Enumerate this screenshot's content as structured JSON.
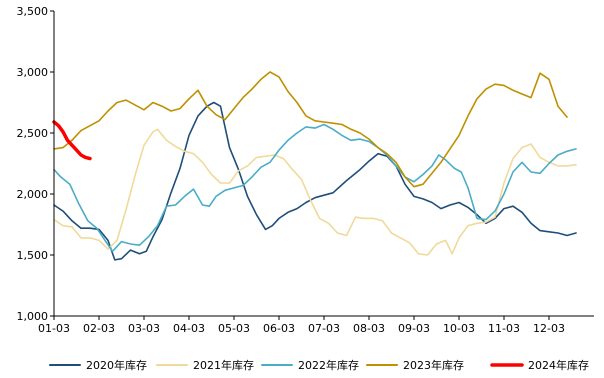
{
  "chart_data": {
    "type": "line",
    "title": "",
    "xlabel": "",
    "ylabel": "",
    "ylim": [
      1000,
      3500
    ],
    "yticks": [
      1000,
      1500,
      2000,
      2500,
      3000,
      3500
    ],
    "ytick_labels": [
      "1,000",
      "1,500",
      "2,000",
      "2,500",
      "3,000",
      "3,500"
    ],
    "xlim": [
      1,
      13
    ],
    "xticks": [
      1,
      2,
      3,
      4,
      5,
      6,
      7,
      8,
      9,
      10,
      11,
      12
    ],
    "xtick_labels": [
      "01-03",
      "02-03",
      "03-03",
      "04-03",
      "05-03",
      "06-03",
      "07-03",
      "08-03",
      "09-03",
      "10-03",
      "11-03",
      "12-03"
    ],
    "grid": false,
    "legend_position": "bottom",
    "series": [
      {
        "name": "2020年库存",
        "color": "#1f4e79",
        "width": 1.6,
        "points": [
          [
            1,
            1910
          ],
          [
            1.2,
            1860
          ],
          [
            1.4,
            1780
          ],
          [
            1.6,
            1720
          ],
          [
            1.8,
            1720
          ],
          [
            2,
            1710
          ],
          [
            2.2,
            1620
          ],
          [
            2.35,
            1460
          ],
          [
            2.5,
            1470
          ],
          [
            2.7,
            1540
          ],
          [
            2.9,
            1510
          ],
          [
            3.05,
            1530
          ],
          [
            3.2,
            1650
          ],
          [
            3.4,
            1790
          ],
          [
            3.6,
            2010
          ],
          [
            3.8,
            2210
          ],
          [
            4,
            2480
          ],
          [
            4.2,
            2640
          ],
          [
            4.4,
            2720
          ],
          [
            4.55,
            2750
          ],
          [
            4.7,
            2720
          ],
          [
            4.8,
            2550
          ],
          [
            4.9,
            2380
          ],
          [
            5.1,
            2200
          ],
          [
            5.3,
            1980
          ],
          [
            5.5,
            1830
          ],
          [
            5.7,
            1710
          ],
          [
            5.85,
            1740
          ],
          [
            6,
            1800
          ],
          [
            6.2,
            1850
          ],
          [
            6.4,
            1880
          ],
          [
            6.6,
            1930
          ],
          [
            6.8,
            1970
          ],
          [
            7,
            1990
          ],
          [
            7.2,
            2010
          ],
          [
            7.5,
            2110
          ],
          [
            7.8,
            2200
          ],
          [
            8,
            2270
          ],
          [
            8.2,
            2330
          ],
          [
            8.4,
            2310
          ],
          [
            8.6,
            2230
          ],
          [
            8.8,
            2080
          ],
          [
            9,
            1980
          ],
          [
            9.2,
            1960
          ],
          [
            9.4,
            1930
          ],
          [
            9.6,
            1880
          ],
          [
            9.8,
            1910
          ],
          [
            10,
            1930
          ],
          [
            10.2,
            1890
          ],
          [
            10.4,
            1830
          ],
          [
            10.6,
            1760
          ],
          [
            10.8,
            1800
          ],
          [
            11,
            1880
          ],
          [
            11.2,
            1900
          ],
          [
            11.4,
            1850
          ],
          [
            11.6,
            1760
          ],
          [
            11.8,
            1700
          ],
          [
            12,
            1690
          ],
          [
            12.2,
            1680
          ],
          [
            12.4,
            1660
          ],
          [
            12.6,
            1680
          ]
        ]
      },
      {
        "name": "2021年库存",
        "color": "#f0d99a",
        "width": 1.6,
        "points": [
          [
            1,
            1790
          ],
          [
            1.2,
            1740
          ],
          [
            1.4,
            1730
          ],
          [
            1.6,
            1640
          ],
          [
            1.8,
            1640
          ],
          [
            2,
            1620
          ],
          [
            2.2,
            1550
          ],
          [
            2.4,
            1620
          ],
          [
            2.6,
            1870
          ],
          [
            2.8,
            2150
          ],
          [
            3,
            2400
          ],
          [
            3.2,
            2510
          ],
          [
            3.3,
            2530
          ],
          [
            3.5,
            2440
          ],
          [
            3.7,
            2390
          ],
          [
            3.9,
            2350
          ],
          [
            4.1,
            2330
          ],
          [
            4.3,
            2260
          ],
          [
            4.5,
            2160
          ],
          [
            4.7,
            2090
          ],
          [
            4.9,
            2090
          ],
          [
            5.1,
            2190
          ],
          [
            5.3,
            2230
          ],
          [
            5.5,
            2300
          ],
          [
            5.7,
            2310
          ],
          [
            5.9,
            2320
          ],
          [
            6.1,
            2290
          ],
          [
            6.3,
            2200
          ],
          [
            6.5,
            2120
          ],
          [
            6.7,
            1950
          ],
          [
            6.9,
            1800
          ],
          [
            7.1,
            1760
          ],
          [
            7.3,
            1680
          ],
          [
            7.5,
            1660
          ],
          [
            7.7,
            1810
          ],
          [
            7.9,
            1800
          ],
          [
            8.1,
            1800
          ],
          [
            8.3,
            1780
          ],
          [
            8.5,
            1680
          ],
          [
            8.7,
            1640
          ],
          [
            8.9,
            1600
          ],
          [
            9.1,
            1510
          ],
          [
            9.3,
            1500
          ],
          [
            9.5,
            1590
          ],
          [
            9.7,
            1620
          ],
          [
            9.85,
            1510
          ],
          [
            10,
            1640
          ],
          [
            10.2,
            1740
          ],
          [
            10.4,
            1760
          ],
          [
            10.6,
            1770
          ],
          [
            10.8,
            1810
          ],
          [
            11,
            2090
          ],
          [
            11.2,
            2290
          ],
          [
            11.4,
            2380
          ],
          [
            11.6,
            2410
          ],
          [
            11.8,
            2300
          ],
          [
            12,
            2260
          ],
          [
            12.2,
            2230
          ],
          [
            12.4,
            2230
          ],
          [
            12.6,
            2240
          ]
        ]
      },
      {
        "name": "2022年库存",
        "color": "#4bacc6",
        "width": 1.6,
        "points": [
          [
            1,
            2200
          ],
          [
            1.15,
            2140
          ],
          [
            1.35,
            2080
          ],
          [
            1.55,
            1920
          ],
          [
            1.75,
            1780
          ],
          [
            1.95,
            1720
          ],
          [
            2.15,
            1610
          ],
          [
            2.3,
            1530
          ],
          [
            2.5,
            1610
          ],
          [
            2.7,
            1590
          ],
          [
            2.9,
            1580
          ],
          [
            3.1,
            1650
          ],
          [
            3.3,
            1740
          ],
          [
            3.5,
            1900
          ],
          [
            3.7,
            1910
          ],
          [
            3.9,
            1980
          ],
          [
            4.1,
            2040
          ],
          [
            4.3,
            1910
          ],
          [
            4.45,
            1900
          ],
          [
            4.6,
            1980
          ],
          [
            4.8,
            2030
          ],
          [
            5,
            2050
          ],
          [
            5.2,
            2070
          ],
          [
            5.4,
            2140
          ],
          [
            5.6,
            2220
          ],
          [
            5.8,
            2260
          ],
          [
            6,
            2360
          ],
          [
            6.2,
            2440
          ],
          [
            6.4,
            2500
          ],
          [
            6.6,
            2550
          ],
          [
            6.8,
            2540
          ],
          [
            7,
            2570
          ],
          [
            7.2,
            2530
          ],
          [
            7.4,
            2480
          ],
          [
            7.6,
            2440
          ],
          [
            7.8,
            2450
          ],
          [
            8,
            2430
          ],
          [
            8.2,
            2380
          ],
          [
            8.4,
            2320
          ],
          [
            8.6,
            2230
          ],
          [
            8.8,
            2140
          ],
          [
            9,
            2100
          ],
          [
            9.2,
            2160
          ],
          [
            9.4,
            2230
          ],
          [
            9.55,
            2320
          ],
          [
            9.7,
            2280
          ],
          [
            9.9,
            2210
          ],
          [
            10.05,
            2180
          ],
          [
            10.2,
            2050
          ],
          [
            10.4,
            1800
          ],
          [
            10.6,
            1790
          ],
          [
            10.8,
            1860
          ],
          [
            11,
            2000
          ],
          [
            11.2,
            2180
          ],
          [
            11.4,
            2260
          ],
          [
            11.6,
            2180
          ],
          [
            11.8,
            2170
          ],
          [
            12,
            2250
          ],
          [
            12.2,
            2320
          ],
          [
            12.4,
            2350
          ],
          [
            12.6,
            2370
          ]
        ]
      },
      {
        "name": "2023年库存",
        "color": "#bf9000",
        "width": 1.6,
        "points": [
          [
            1,
            2370
          ],
          [
            1.2,
            2380
          ],
          [
            1.4,
            2440
          ],
          [
            1.6,
            2520
          ],
          [
            1.8,
            2560
          ],
          [
            2,
            2600
          ],
          [
            2.2,
            2680
          ],
          [
            2.4,
            2750
          ],
          [
            2.6,
            2770
          ],
          [
            2.8,
            2730
          ],
          [
            3,
            2690
          ],
          [
            3.2,
            2750
          ],
          [
            3.4,
            2720
          ],
          [
            3.6,
            2680
          ],
          [
            3.8,
            2700
          ],
          [
            4,
            2780
          ],
          [
            4.2,
            2850
          ],
          [
            4.4,
            2720
          ],
          [
            4.6,
            2650
          ],
          [
            4.8,
            2610
          ],
          [
            5,
            2700
          ],
          [
            5.2,
            2790
          ],
          [
            5.4,
            2860
          ],
          [
            5.6,
            2940
          ],
          [
            5.8,
            3000
          ],
          [
            6,
            2960
          ],
          [
            6.2,
            2840
          ],
          [
            6.4,
            2750
          ],
          [
            6.6,
            2640
          ],
          [
            6.8,
            2600
          ],
          [
            7,
            2590
          ],
          [
            7.2,
            2580
          ],
          [
            7.4,
            2570
          ],
          [
            7.6,
            2530
          ],
          [
            7.8,
            2500
          ],
          [
            8,
            2450
          ],
          [
            8.2,
            2380
          ],
          [
            8.4,
            2330
          ],
          [
            8.6,
            2260
          ],
          [
            8.8,
            2140
          ],
          [
            9,
            2060
          ],
          [
            9.2,
            2080
          ],
          [
            9.4,
            2170
          ],
          [
            9.6,
            2260
          ],
          [
            9.8,
            2370
          ],
          [
            10,
            2480
          ],
          [
            10.2,
            2640
          ],
          [
            10.4,
            2780
          ],
          [
            10.6,
            2860
          ],
          [
            10.8,
            2900
          ],
          [
            11,
            2890
          ],
          [
            11.2,
            2850
          ],
          [
            11.4,
            2820
          ],
          [
            11.6,
            2790
          ],
          [
            11.8,
            2990
          ],
          [
            12,
            2940
          ],
          [
            12.2,
            2720
          ],
          [
            12.4,
            2630
          ]
        ]
      },
      {
        "name": "2024年库存",
        "color": "#ff0000",
        "width": 3.5,
        "points": [
          [
            1,
            2590
          ],
          [
            1.1,
            2560
          ],
          [
            1.2,
            2510
          ],
          [
            1.3,
            2440
          ],
          [
            1.4,
            2400
          ],
          [
            1.5,
            2360
          ],
          [
            1.6,
            2320
          ],
          [
            1.7,
            2300
          ],
          [
            1.8,
            2290
          ]
        ]
      }
    ]
  }
}
